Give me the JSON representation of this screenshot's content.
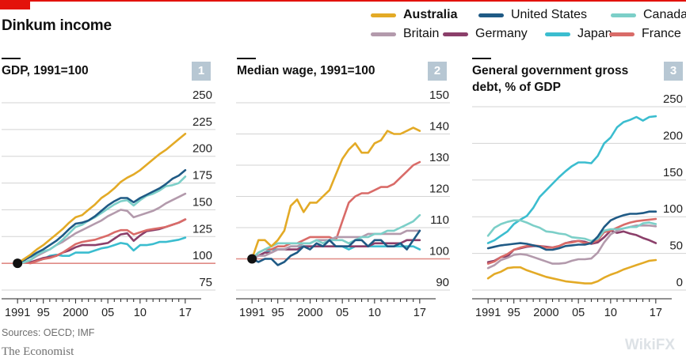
{
  "title": "Dinkum income",
  "colors": {
    "Australia": "#e3aa26",
    "United States": "#1f5a85",
    "Canada": "#7ccfc8",
    "Britain": "#b39aac",
    "Germany": "#8b3f6a",
    "Japan": "#3bbdcf",
    "France": "#d96b68",
    "baseline": "#e08a85",
    "grid": "#d3d3d3",
    "axis_text": "#222222"
  },
  "legend": [
    {
      "label": "Australia",
      "color": "#e3aa26",
      "bold": true
    },
    {
      "label": "United States",
      "color": "#1f5a85",
      "bold": false
    },
    {
      "label": "Canada",
      "color": "#7ccfc8",
      "bold": false
    },
    {
      "label": "Britain",
      "color": "#b39aac",
      "bold": false
    },
    {
      "label": "Germany",
      "color": "#8b3f6a",
      "bold": false
    },
    {
      "label": "Japan",
      "color": "#3bbdcf",
      "bold": false
    },
    {
      "label": "France",
      "color": "#d96b68",
      "bold": false
    }
  ],
  "source": "Sources: OECD; IMF",
  "brand": "The Economist",
  "watermark": "WikiFX",
  "chart_data": [
    {
      "type": "line",
      "panel_number": "1",
      "title": "GDP, 1991=100",
      "ylim": [
        75,
        250
      ],
      "yticks": [
        75,
        100,
        125,
        150,
        175,
        200,
        225,
        250
      ],
      "baseline": 100,
      "xlim": [
        1990,
        2018
      ],
      "xtick_values": [
        1991,
        1995,
        2000,
        2005,
        2010,
        2017
      ],
      "xtick_labels": [
        "1991",
        "95",
        "2000",
        "05",
        "10",
        "17"
      ],
      "start_point": [
        1991,
        100
      ],
      "grid": true,
      "x": [
        1991,
        1992,
        1993,
        1994,
        1995,
        1996,
        1997,
        1998,
        1999,
        2000,
        2001,
        2002,
        2003,
        2004,
        2005,
        2006,
        2007,
        2008,
        2009,
        2010,
        2011,
        2012,
        2013,
        2014,
        2015,
        2016,
        2017
      ],
      "series": [
        {
          "name": "Australia",
          "values": [
            100,
            104,
            108,
            113,
            117,
            122,
            127,
            132,
            138,
            143,
            145,
            150,
            155,
            161,
            165,
            170,
            176,
            180,
            183,
            187,
            192,
            197,
            202,
            206,
            211,
            216,
            221
          ]
        },
        {
          "name": "United States",
          "values": [
            100,
            103,
            106,
            110,
            113,
            117,
            121,
            126,
            132,
            137,
            138,
            140,
            144,
            149,
            154,
            158,
            161,
            161,
            157,
            161,
            164,
            167,
            170,
            174,
            179,
            182,
            187
          ]
        },
        {
          "name": "Canada",
          "values": [
            100,
            101,
            103,
            108,
            111,
            113,
            117,
            122,
            128,
            134,
            136,
            140,
            143,
            147,
            151,
            155,
            158,
            159,
            154,
            159,
            163,
            165,
            168,
            172,
            173,
            175,
            181
          ]
        },
        {
          "name": "Britain",
          "values": [
            100,
            101,
            103,
            107,
            110,
            113,
            117,
            120,
            124,
            128,
            131,
            134,
            137,
            140,
            144,
            147,
            150,
            149,
            143,
            145,
            147,
            149,
            152,
            156,
            159,
            162,
            165
          ]
        },
        {
          "name": "Germany",
          "values": [
            100,
            102,
            101,
            103,
            105,
            106,
            107,
            110,
            112,
            115,
            117,
            117,
            117,
            118,
            119,
            123,
            127,
            128,
            121,
            126,
            130,
            131,
            132,
            134,
            136,
            138,
            141
          ]
        },
        {
          "name": "Japan",
          "values": [
            100,
            101,
            101,
            102,
            104,
            107,
            108,
            107,
            107,
            110,
            110,
            110,
            112,
            114,
            115,
            117,
            119,
            118,
            112,
            117,
            117,
            118,
            120,
            120,
            121,
            122,
            124
          ]
        },
        {
          "name": "France",
          "values": [
            100,
            101,
            100,
            102,
            104,
            105,
            107,
            110,
            114,
            118,
            120,
            121,
            122,
            124,
            126,
            129,
            131,
            131,
            127,
            129,
            131,
            132,
            133,
            134,
            136,
            138,
            141
          ]
        }
      ]
    },
    {
      "type": "line",
      "panel_number": "2",
      "title": "Median wage, 1991=100",
      "ylim": [
        90,
        150
      ],
      "yticks": [
        90,
        100,
        110,
        120,
        130,
        140,
        150
      ],
      "baseline": 100,
      "xlim": [
        1990,
        2018
      ],
      "xtick_values": [
        1991,
        1995,
        2000,
        2005,
        2010,
        2017
      ],
      "xtick_labels": [
        "1991",
        "95",
        "2000",
        "05",
        "10",
        "17"
      ],
      "start_point": [
        1991,
        100
      ],
      "grid": true,
      "x": [
        1991,
        1992,
        1993,
        1994,
        1995,
        1996,
        1997,
        1998,
        1999,
        2000,
        2001,
        2002,
        2003,
        2004,
        2005,
        2006,
        2007,
        2008,
        2009,
        2010,
        2011,
        2012,
        2013,
        2014,
        2015,
        2016,
        2017
      ],
      "series": [
        {
          "name": "Australia",
          "values": [
            100,
            106,
            106,
            104,
            106,
            109,
            117,
            119,
            115,
            118,
            118,
            120,
            122,
            127,
            132,
            135,
            137,
            134,
            134,
            137,
            138,
            141,
            140,
            140,
            141,
            142,
            141
          ]
        },
        {
          "name": "United States",
          "values": [
            100,
            99,
            100,
            100,
            98,
            99,
            101,
            102,
            104,
            103,
            105,
            104,
            106,
            104,
            104,
            104,
            106,
            106,
            104,
            106,
            106,
            104,
            104,
            105,
            103,
            106,
            109
          ]
        },
        {
          "name": "Canada",
          "values": [
            100,
            102,
            103,
            104,
            105,
            105,
            105,
            105,
            105,
            105,
            106,
            105,
            106,
            106,
            106,
            105,
            106,
            107,
            107,
            108,
            108,
            109,
            109,
            110,
            111,
            112,
            114
          ]
        },
        {
          "name": "Britain",
          "values": [
            100,
            101,
            101,
            102,
            103,
            103,
            104,
            104,
            105,
            105,
            106,
            106,
            106,
            107,
            107,
            107,
            107,
            107,
            108,
            108,
            108,
            108,
            108,
            108,
            109,
            109,
            109
          ]
        },
        {
          "name": "Germany",
          "values": [
            100,
            101,
            102,
            102,
            103,
            103,
            103,
            103,
            104,
            104,
            104,
            104,
            104,
            104,
            104,
            104,
            104,
            104,
            104,
            105,
            105,
            105,
            105,
            105,
            106,
            106,
            106
          ]
        },
        {
          "name": "Japan",
          "values": [
            100,
            101,
            102,
            103,
            103,
            103,
            104,
            104,
            104,
            104,
            104,
            104,
            104,
            104,
            104,
            103,
            104,
            104,
            104,
            104,
            104,
            104,
            104,
            104,
            104,
            104,
            103
          ]
        },
        {
          "name": "France",
          "values": [
            100,
            102,
            103,
            103,
            104,
            104,
            105,
            105,
            106,
            107,
            107,
            107,
            107,
            106,
            112,
            118,
            120,
            121,
            121,
            122,
            123,
            123,
            124,
            126,
            128,
            130,
            131
          ]
        }
      ]
    },
    {
      "type": "line",
      "panel_number": "3",
      "title": "General government gross debt, % of GDP",
      "ylim": [
        0,
        250
      ],
      "yticks": [
        0,
        50,
        100,
        150,
        200,
        250
      ],
      "xlim": [
        1990,
        2018
      ],
      "xtick_values": [
        1991,
        1995,
        2000,
        2005,
        2010,
        2017
      ],
      "xtick_labels": [
        "1991",
        "95",
        "2000",
        "05",
        "10",
        "17"
      ],
      "grid": true,
      "x": [
        1991,
        1992,
        1993,
        1994,
        1995,
        1996,
        1997,
        1998,
        1999,
        2000,
        2001,
        2002,
        2003,
        2004,
        2005,
        2006,
        2007,
        2008,
        2009,
        2010,
        2011,
        2012,
        2013,
        2014,
        2015,
        2016,
        2017
      ],
      "series": [
        {
          "name": "Australia",
          "values": [
            16,
            22,
            25,
            30,
            31,
            31,
            27,
            24,
            21,
            18,
            16,
            14,
            12,
            11,
            10,
            9,
            9,
            12,
            17,
            21,
            24,
            28,
            31,
            34,
            37,
            40,
            41
          ]
        },
        {
          "name": "United States",
          "values": [
            57,
            59,
            61,
            62,
            63,
            64,
            63,
            61,
            59,
            55,
            55,
            57,
            60,
            61,
            62,
            62,
            64,
            73,
            86,
            95,
            99,
            102,
            104,
            104,
            105,
            107,
            107
          ]
        },
        {
          "name": "Canada",
          "values": [
            74,
            85,
            90,
            93,
            95,
            95,
            92,
            88,
            85,
            80,
            79,
            77,
            76,
            72,
            71,
            70,
            67,
            70,
            81,
            83,
            83,
            84,
            86,
            86,
            91,
            92,
            90
          ]
        },
        {
          "name": "Britain",
          "values": [
            30,
            34,
            41,
            44,
            48,
            49,
            48,
            45,
            42,
            39,
            36,
            36,
            37,
            40,
            42,
            42,
            43,
            51,
            65,
            76,
            81,
            84,
            86,
            88,
            88,
            88,
            87
          ]
        },
        {
          "name": "Germany",
          "values": [
            38,
            40,
            45,
            46,
            55,
            57,
            59,
            60,
            60,
            59,
            58,
            60,
            64,
            66,
            67,
            66,
            63,
            65,
            72,
            81,
            78,
            80,
            77,
            75,
            71,
            68,
            64
          ]
        },
        {
          "name": "Japan",
          "values": [
            64,
            68,
            74,
            80,
            90,
            96,
            101,
            112,
            127,
            136,
            145,
            154,
            162,
            169,
            174,
            174,
            173,
            183,
            200,
            208,
            222,
            229,
            232,
            236,
            231,
            236,
            237
          ]
        },
        {
          "name": "France",
          "values": [
            36,
            39,
            45,
            49,
            55,
            58,
            60,
            61,
            60,
            58,
            58,
            60,
            64,
            65,
            67,
            64,
            64,
            68,
            79,
            81,
            85,
            89,
            92,
            94,
            95,
            96,
            97
          ]
        }
      ]
    }
  ]
}
